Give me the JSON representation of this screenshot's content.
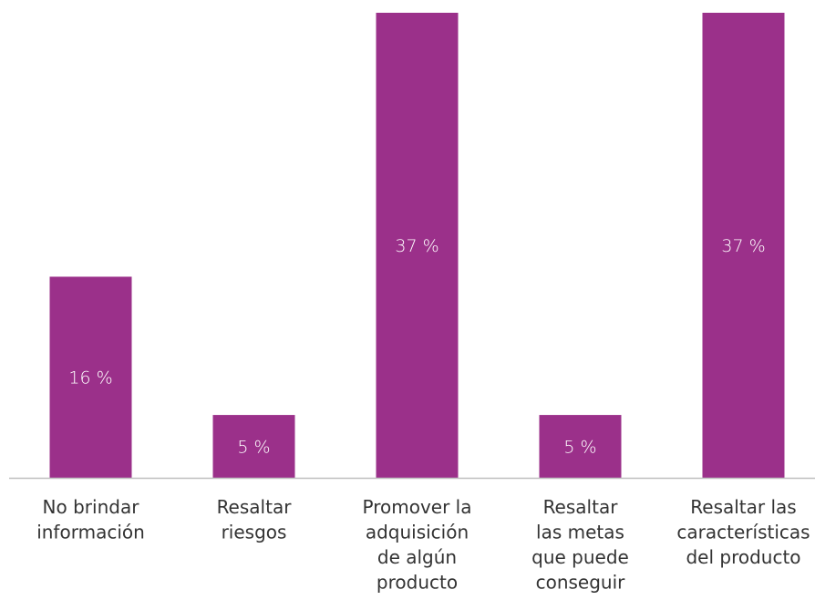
{
  "chart_data": {
    "type": "bar",
    "categories": [
      [
        "No brindar",
        "información"
      ],
      [
        "Resaltar",
        "riesgos"
      ],
      [
        "Promover la",
        "adquisición",
        "de algún",
        "producto"
      ],
      [
        "Resaltar",
        "las metas",
        "que puede",
        "conseguir"
      ],
      [
        "Resaltar las",
        "características",
        "del producto"
      ]
    ],
    "values": [
      16,
      5,
      37,
      5,
      37
    ],
    "data_labels": [
      "16 %",
      "5 %",
      "37 %",
      "5 %",
      "37 %"
    ],
    "unit": "%",
    "ylim": [
      0,
      37
    ],
    "grid": false,
    "legend": false,
    "bar_color": "#9b308a",
    "axis_color": "#bfbfbf",
    "label_color": "#333333"
  }
}
